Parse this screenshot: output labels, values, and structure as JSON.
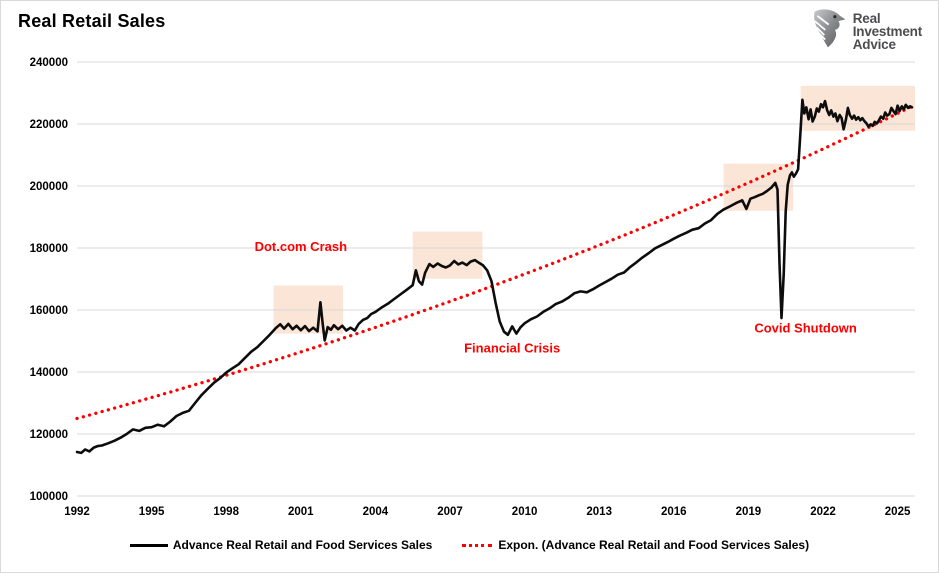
{
  "header": {
    "title": "Real Retail Sales",
    "logo": {
      "line1": "Real",
      "line2": "Investment",
      "line3": "Advice",
      "icon": "eagle-icon"
    }
  },
  "chart_data": {
    "type": "line",
    "title": "Real Retail Sales",
    "grid": "horizontal",
    "legend_position": "bottom",
    "x_axis": {
      "min": 1992,
      "max": 2025.7,
      "tick_interval": 3,
      "ticks": [
        1992,
        1995,
        1998,
        2001,
        2004,
        2007,
        2010,
        2013,
        2016,
        2019,
        2022,
        2025
      ]
    },
    "y_axis": {
      "min": 100000,
      "max": 240000,
      "tick_interval": 20000,
      "ticks": [
        100000,
        120000,
        140000,
        160000,
        180000,
        200000,
        220000,
        240000
      ]
    },
    "colors": {
      "sales_line": "#0d0d0d",
      "trend_line": "#ff0000",
      "highlight": "#fbe5d6",
      "gridline": "#d9d9d9",
      "annotation": "#ff0000"
    },
    "series": [
      {
        "name": "Advance Real Retail and Food Services Sales",
        "type": "line",
        "color": "#0d0d0d",
        "points": [
          [
            1992.0,
            114200
          ],
          [
            1992.17,
            113900
          ],
          [
            1992.33,
            115000
          ],
          [
            1992.5,
            114400
          ],
          [
            1992.67,
            115600
          ],
          [
            1992.83,
            116100
          ],
          [
            1993.0,
            116300
          ],
          [
            1993.25,
            117000
          ],
          [
            1993.5,
            117800
          ],
          [
            1993.75,
            118800
          ],
          [
            1994.0,
            120000
          ],
          [
            1994.25,
            121500
          ],
          [
            1994.5,
            121000
          ],
          [
            1994.75,
            122000
          ],
          [
            1995.0,
            122200
          ],
          [
            1995.25,
            123000
          ],
          [
            1995.5,
            122500
          ],
          [
            1995.75,
            124000
          ],
          [
            1996.0,
            125800
          ],
          [
            1996.25,
            126800
          ],
          [
            1996.5,
            127500
          ],
          [
            1996.75,
            130000
          ],
          [
            1997.0,
            132500
          ],
          [
            1997.25,
            134500
          ],
          [
            1997.5,
            136500
          ],
          [
            1997.75,
            138000
          ],
          [
            1998.0,
            139800
          ],
          [
            1998.25,
            141200
          ],
          [
            1998.5,
            142500
          ],
          [
            1998.75,
            144500
          ],
          [
            1999.0,
            146500
          ],
          [
            1999.25,
            148000
          ],
          [
            1999.5,
            150000
          ],
          [
            1999.75,
            152000
          ],
          [
            2000.0,
            154200
          ],
          [
            2000.17,
            155400
          ],
          [
            2000.33,
            154000
          ],
          [
            2000.5,
            155500
          ],
          [
            2000.67,
            153800
          ],
          [
            2000.83,
            154900
          ],
          [
            2001.0,
            153500
          ],
          [
            2001.17,
            154800
          ],
          [
            2001.33,
            153200
          ],
          [
            2001.5,
            154300
          ],
          [
            2001.67,
            153100
          ],
          [
            2001.79,
            162500
          ],
          [
            2001.88,
            155500
          ],
          [
            2001.96,
            150200
          ],
          [
            2002.08,
            154500
          ],
          [
            2002.21,
            153600
          ],
          [
            2002.33,
            155100
          ],
          [
            2002.5,
            153800
          ],
          [
            2002.67,
            154900
          ],
          [
            2002.83,
            153400
          ],
          [
            2003.0,
            154300
          ],
          [
            2003.17,
            153400
          ],
          [
            2003.33,
            155500
          ],
          [
            2003.5,
            156800
          ],
          [
            2003.67,
            157400
          ],
          [
            2003.83,
            158700
          ],
          [
            2004.0,
            159400
          ],
          [
            2004.25,
            160800
          ],
          [
            2004.5,
            162000
          ],
          [
            2004.75,
            163500
          ],
          [
            2005.0,
            165000
          ],
          [
            2005.25,
            166500
          ],
          [
            2005.5,
            168000
          ],
          [
            2005.63,
            172800
          ],
          [
            2005.75,
            169300
          ],
          [
            2005.88,
            168200
          ],
          [
            2006.0,
            172000
          ],
          [
            2006.17,
            174800
          ],
          [
            2006.33,
            173900
          ],
          [
            2006.5,
            175000
          ],
          [
            2006.67,
            174200
          ],
          [
            2006.83,
            173700
          ],
          [
            2007.0,
            174400
          ],
          [
            2007.17,
            175800
          ],
          [
            2007.33,
            174700
          ],
          [
            2007.5,
            175300
          ],
          [
            2007.67,
            174500
          ],
          [
            2007.83,
            175600
          ],
          [
            2008.0,
            176100
          ],
          [
            2008.17,
            175200
          ],
          [
            2008.33,
            174400
          ],
          [
            2008.5,
            172700
          ],
          [
            2008.67,
            169300
          ],
          [
            2008.83,
            162500
          ],
          [
            2009.0,
            156300
          ],
          [
            2009.17,
            153000
          ],
          [
            2009.33,
            152000
          ],
          [
            2009.5,
            154700
          ],
          [
            2009.67,
            152400
          ],
          [
            2009.83,
            154400
          ],
          [
            2010.0,
            155700
          ],
          [
            2010.25,
            157000
          ],
          [
            2010.5,
            157900
          ],
          [
            2010.75,
            159400
          ],
          [
            2011.0,
            160500
          ],
          [
            2011.25,
            161900
          ],
          [
            2011.5,
            162700
          ],
          [
            2011.75,
            163900
          ],
          [
            2012.0,
            165400
          ],
          [
            2012.25,
            166000
          ],
          [
            2012.5,
            165700
          ],
          [
            2012.75,
            166700
          ],
          [
            2013.0,
            167900
          ],
          [
            2013.25,
            169000
          ],
          [
            2013.5,
            170100
          ],
          [
            2013.75,
            171400
          ],
          [
            2014.0,
            172100
          ],
          [
            2014.25,
            173900
          ],
          [
            2014.5,
            175400
          ],
          [
            2014.75,
            177000
          ],
          [
            2015.0,
            178400
          ],
          [
            2015.25,
            179900
          ],
          [
            2015.5,
            180900
          ],
          [
            2015.75,
            181900
          ],
          [
            2016.0,
            183000
          ],
          [
            2016.25,
            184000
          ],
          [
            2016.5,
            184900
          ],
          [
            2016.75,
            185900
          ],
          [
            2017.0,
            186400
          ],
          [
            2017.25,
            187900
          ],
          [
            2017.5,
            189000
          ],
          [
            2017.75,
            191000
          ],
          [
            2018.0,
            192400
          ],
          [
            2018.25,
            193400
          ],
          [
            2018.5,
            194500
          ],
          [
            2018.75,
            195400
          ],
          [
            2018.92,
            192600
          ],
          [
            2019.08,
            195900
          ],
          [
            2019.25,
            196400
          ],
          [
            2019.42,
            197000
          ],
          [
            2019.58,
            197500
          ],
          [
            2019.75,
            198400
          ],
          [
            2019.92,
            199500
          ],
          [
            2020.08,
            201000
          ],
          [
            2020.17,
            198900
          ],
          [
            2020.25,
            175000
          ],
          [
            2020.33,
            157400
          ],
          [
            2020.42,
            171500
          ],
          [
            2020.5,
            191800
          ],
          [
            2020.58,
            200400
          ],
          [
            2020.67,
            203400
          ],
          [
            2020.75,
            204400
          ],
          [
            2020.83,
            203000
          ],
          [
            2020.92,
            204100
          ],
          [
            2021.0,
            205400
          ],
          [
            2021.08,
            215500
          ],
          [
            2021.17,
            227800
          ],
          [
            2021.25,
            223400
          ],
          [
            2021.33,
            225400
          ],
          [
            2021.42,
            221500
          ],
          [
            2021.5,
            224700
          ],
          [
            2021.58,
            220800
          ],
          [
            2021.67,
            222400
          ],
          [
            2021.75,
            225000
          ],
          [
            2021.83,
            224000
          ],
          [
            2021.92,
            226400
          ],
          [
            2022.0,
            225400
          ],
          [
            2022.08,
            227400
          ],
          [
            2022.17,
            224400
          ],
          [
            2022.25,
            222900
          ],
          [
            2022.33,
            224400
          ],
          [
            2022.42,
            222400
          ],
          [
            2022.5,
            223400
          ],
          [
            2022.58,
            220900
          ],
          [
            2022.67,
            222900
          ],
          [
            2022.75,
            221900
          ],
          [
            2022.83,
            218300
          ],
          [
            2022.92,
            221400
          ],
          [
            2023.0,
            225200
          ],
          [
            2023.08,
            222900
          ],
          [
            2023.17,
            221700
          ],
          [
            2023.25,
            222700
          ],
          [
            2023.33,
            221400
          ],
          [
            2023.42,
            222200
          ],
          [
            2023.5,
            221200
          ],
          [
            2023.58,
            221900
          ],
          [
            2023.67,
            220900
          ],
          [
            2023.75,
            220200
          ],
          [
            2023.83,
            219200
          ],
          [
            2023.92,
            219900
          ],
          [
            2024.0,
            219400
          ],
          [
            2024.08,
            220700
          ],
          [
            2024.17,
            220200
          ],
          [
            2024.25,
            221200
          ],
          [
            2024.33,
            222400
          ],
          [
            2024.42,
            221700
          ],
          [
            2024.5,
            223700
          ],
          [
            2024.58,
            222700
          ],
          [
            2024.67,
            223200
          ],
          [
            2024.75,
            225200
          ],
          [
            2024.83,
            224200
          ],
          [
            2024.92,
            223200
          ],
          [
            2025.0,
            225900
          ],
          [
            2025.08,
            224200
          ],
          [
            2025.17,
            225700
          ],
          [
            2025.25,
            224700
          ],
          [
            2025.33,
            226200
          ],
          [
            2025.42,
            225200
          ],
          [
            2025.5,
            225700
          ],
          [
            2025.58,
            225400
          ]
        ]
      },
      {
        "name": "Expon. (Advance Real Retail and Food Services Sales)",
        "type": "exponential_trend",
        "style": "dotted",
        "color": "#ff0000",
        "start_year": 1992,
        "start_value": 125000,
        "growth_rate_per_year": 0.0176,
        "end_year": 2025.66,
        "end_value": 225800
      }
    ],
    "highlight_regions": [
      {
        "label": "Dot.com Crash region",
        "x0": 1999.9,
        "x1": 2002.7,
        "y0": 152400,
        "y1": 167900,
        "color": "#fbe5d6"
      },
      {
        "label": "Financial Crisis region",
        "x0": 2005.5,
        "x1": 2008.3,
        "y0": 170100,
        "y1": 185300,
        "color": "#fbe5d6"
      },
      {
        "label": "Pre-Covid region",
        "x0": 2018.0,
        "x1": 2020.8,
        "y0": 192000,
        "y1": 207200,
        "color": "#fbe5d6"
      },
      {
        "label": "Post-Covid region",
        "x0": 2021.1,
        "x1": 2025.7,
        "y0": 217800,
        "y1": 232300,
        "color": "#fbe5d6"
      }
    ],
    "annotations": [
      {
        "text": "Dot.com Crash",
        "x": 2001.0,
        "y": 179000,
        "color": "#ff0000"
      },
      {
        "text": "Financial Crisis",
        "x": 2009.5,
        "y": 146300,
        "color": "#ff0000"
      },
      {
        "text": "Covid Shutdown",
        "x": 2021.3,
        "y": 152800,
        "color": "#ff0000"
      }
    ],
    "legend": [
      {
        "label": "Advance Real Retail and Food Services Sales",
        "swatch": "solid-line",
        "color": "#000000"
      },
      {
        "label": "Expon. (Advance Real Retail and Food Services Sales)",
        "swatch": "dotted-line",
        "color": "#ff0000"
      }
    ]
  }
}
